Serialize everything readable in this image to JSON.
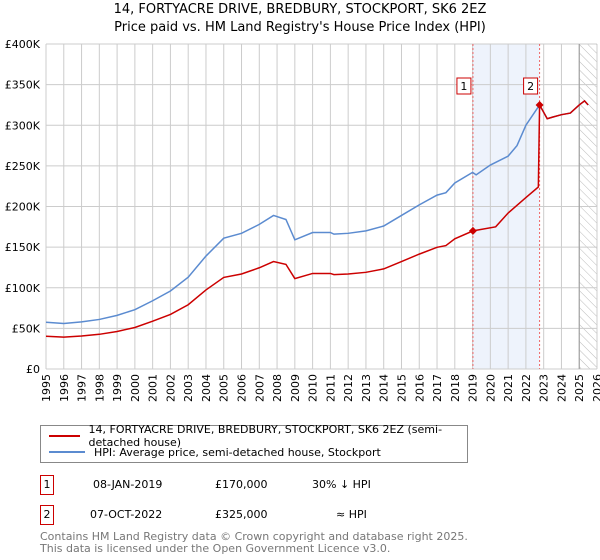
{
  "title": "14, FORTYACRE DRIVE, BREDBURY, STOCKPORT, SK6 2EZ",
  "subtitle": "Price paid vs. HM Land Registry's House Price Index (HPI)",
  "chart_data": {
    "type": "line",
    "ylim": [
      0,
      400000
    ],
    "xlim": [
      1995,
      2026
    ],
    "yticks": [
      0,
      50000,
      100000,
      150000,
      200000,
      250000,
      300000,
      350000,
      400000
    ],
    "ytick_labels": [
      "£0",
      "£50K",
      "£100K",
      "£150K",
      "£200K",
      "£250K",
      "£300K",
      "£350K",
      "£400K"
    ],
    "xticks": [
      "1995",
      "1996",
      "1997",
      "1998",
      "1999",
      "2000",
      "2001",
      "2002",
      "2003",
      "2004",
      "2005",
      "2006",
      "2007",
      "2008",
      "2009",
      "2010",
      "2011",
      "2012",
      "2013",
      "2014",
      "2015",
      "2016",
      "2017",
      "2018",
      "2019",
      "2020",
      "2021",
      "2022",
      "2023",
      "2024",
      "2025",
      "2026"
    ],
    "grid": true,
    "shaded_period": [
      2019.02,
      2022.77
    ],
    "forecast_hatch_from": 2025.0,
    "series": [
      {
        "name": "14, FORTYACRE DRIVE, BREDBURY, STOCKPORT, SK6 2EZ (semi-detached house)",
        "color": "#cc0000",
        "x": [
          1995,
          1996,
          1997,
          1998,
          1999,
          2000,
          2001,
          2002,
          2003,
          2004,
          2005,
          2006,
          2007,
          2007.8,
          2008.5,
          2009,
          2010,
          2011,
          2011.2,
          2012,
          2013,
          2014,
          2015,
          2016,
          2017,
          2017.5,
          2018,
          2019.02,
          2020.3,
          2021,
          2022,
          2022.7,
          2022.77,
          2023.2,
          2023.5,
          2024,
          2024.5,
          2025,
          2025.3,
          2025.5
        ],
        "y": [
          40300,
          39200,
          40600,
          42700,
          46200,
          51100,
          58800,
          67200,
          79100,
          97300,
          112700,
          116900,
          124600,
          132300,
          128800,
          111300,
          117600,
          117600,
          116200,
          116900,
          119000,
          123200,
          132300,
          141400,
          149800,
          151900,
          160300,
          170000,
          175000,
          192000,
          211000,
          224000,
          325000,
          308000,
          310000,
          313000,
          315000,
          325000,
          330000,
          325000
        ]
      },
      {
        "name": "HPI: Average price, semi-detached house, Stockport",
        "color": "#5b8bd0",
        "x": [
          1995,
          1996,
          1997,
          1998,
          1999,
          2000,
          2001,
          2002,
          2003,
          2004,
          2005,
          2006,
          2007,
          2007.8,
          2008.5,
          2009,
          2010,
          2011,
          2011.2,
          2012,
          2013,
          2014,
          2015,
          2016,
          2017,
          2017.5,
          2018,
          2019,
          2019.2,
          2020,
          2021,
          2021.5,
          2022,
          2022.77,
          2023.2,
          2023.5,
          2024,
          2024.5,
          2025,
          2025.3,
          2025.5
        ],
        "y": [
          57600,
          56000,
          58000,
          61000,
          66000,
          73000,
          84000,
          96000,
          113000,
          139000,
          161000,
          167000,
          178000,
          189000,
          184000,
          159000,
          168000,
          168000,
          166000,
          167000,
          170000,
          176000,
          189000,
          202000,
          214000,
          217000,
          229000,
          242000,
          239000,
          251000,
          262000,
          275000,
          300000,
          325000,
          308000,
          310000,
          313000,
          315000,
          325000,
          330000,
          325000
        ]
      }
    ],
    "points": [
      {
        "label": "1",
        "x": 2019.02,
        "y": 170000
      },
      {
        "label": "2",
        "x": 2022.77,
        "y": 325000
      }
    ]
  },
  "legend": {
    "red": "14, FORTYACRE DRIVE, BREDBURY, STOCKPORT, SK6 2EZ (semi-detached house)",
    "blue": "HPI: Average price, semi-detached house, Stockport"
  },
  "table": [
    {
      "num": "1",
      "date": "08-JAN-2019",
      "price": "£170,000",
      "rel": "30% ↓ HPI"
    },
    {
      "num": "2",
      "date": "07-OCT-2022",
      "price": "£325,000",
      "rel": "≈ HPI"
    }
  ],
  "footer": [
    "Contains HM Land Registry data © Crown copyright and database right 2025.",
    "This data is licensed under the Open Government Licence v3.0."
  ]
}
